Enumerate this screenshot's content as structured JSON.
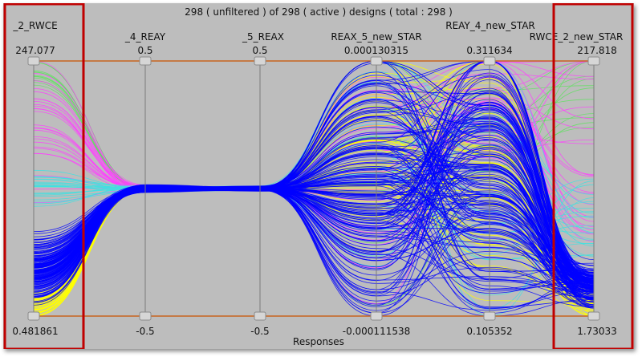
{
  "header": "298 ( unfiltered ) of 298 ( active ) designs ( total : 298 )",
  "footer": "Responses",
  "colors": {
    "background": "#bdbdbd",
    "range_line": "#c8641e",
    "axis_line": "#7a7a7a",
    "highlight_box": "#c00000",
    "series": [
      "#0000ff",
      "#ffff00",
      "#40e0e0",
      "#ff40ff",
      "#60e060"
    ]
  },
  "chart_data": {
    "type": "parallel-coordinates",
    "total_designs": 298,
    "axes": [
      {
        "name": "_2_RWCE",
        "max": "247.077",
        "min": "0.481861",
        "highlighted": true
      },
      {
        "name": "_4_REAY",
        "max": "0.5",
        "min": "-0.5",
        "highlighted": false
      },
      {
        "name": "_5_REAX",
        "max": "0.5",
        "min": "-0.5",
        "highlighted": false
      },
      {
        "name": "REAX_5_new_STAR",
        "max": "0.000130315",
        "min": "-0.000111538",
        "highlighted": false
      },
      {
        "name": "REAY_4_new_STAR",
        "max": "0.311634",
        "min": "0.105352",
        "highlighted": false
      },
      {
        "name": "RWCE_2_new_STAR",
        "max": "217.818",
        "min": "1.73033",
        "highlighted": true
      }
    ],
    "series_groups": [
      {
        "color": "#0000ff",
        "share": 0.62
      },
      {
        "color": "#ffff00",
        "share": 0.17
      },
      {
        "color": "#40e0e0",
        "share": 0.08
      },
      {
        "color": "#ff40ff",
        "share": 0.09
      },
      {
        "color": "#60e060",
        "share": 0.04
      }
    ]
  }
}
